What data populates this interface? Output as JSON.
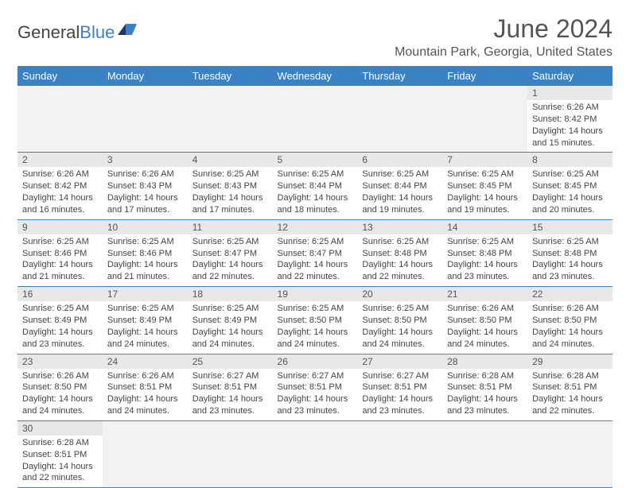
{
  "logo": {
    "text1": "General",
    "text2": "Blue"
  },
  "title": "June 2024",
  "location": "Mountain Park, Georgia, United States",
  "colors": {
    "header_bg": "#3b82c4",
    "header_fg": "#ffffff",
    "daynum_bg": "#e8e8e8",
    "border": "#3b82c4",
    "text": "#444444"
  },
  "typography": {
    "title_size_pt": 24,
    "location_size_pt": 12,
    "dayheader_size_pt": 10,
    "daynum_size_pt": 9,
    "body_size_pt": 8
  },
  "dayHeaders": [
    "Sunday",
    "Monday",
    "Tuesday",
    "Wednesday",
    "Thursday",
    "Friday",
    "Saturday"
  ],
  "startOffset": 6,
  "days": [
    {
      "n": 1,
      "sunrise": "6:26 AM",
      "sunset": "8:42 PM",
      "daylight": "14 hours and 15 minutes."
    },
    {
      "n": 2,
      "sunrise": "6:26 AM",
      "sunset": "8:42 PM",
      "daylight": "14 hours and 16 minutes."
    },
    {
      "n": 3,
      "sunrise": "6:26 AM",
      "sunset": "8:43 PM",
      "daylight": "14 hours and 17 minutes."
    },
    {
      "n": 4,
      "sunrise": "6:25 AM",
      "sunset": "8:43 PM",
      "daylight": "14 hours and 17 minutes."
    },
    {
      "n": 5,
      "sunrise": "6:25 AM",
      "sunset": "8:44 PM",
      "daylight": "14 hours and 18 minutes."
    },
    {
      "n": 6,
      "sunrise": "6:25 AM",
      "sunset": "8:44 PM",
      "daylight": "14 hours and 19 minutes."
    },
    {
      "n": 7,
      "sunrise": "6:25 AM",
      "sunset": "8:45 PM",
      "daylight": "14 hours and 19 minutes."
    },
    {
      "n": 8,
      "sunrise": "6:25 AM",
      "sunset": "8:45 PM",
      "daylight": "14 hours and 20 minutes."
    },
    {
      "n": 9,
      "sunrise": "6:25 AM",
      "sunset": "8:46 PM",
      "daylight": "14 hours and 21 minutes."
    },
    {
      "n": 10,
      "sunrise": "6:25 AM",
      "sunset": "8:46 PM",
      "daylight": "14 hours and 21 minutes."
    },
    {
      "n": 11,
      "sunrise": "6:25 AM",
      "sunset": "8:47 PM",
      "daylight": "14 hours and 22 minutes."
    },
    {
      "n": 12,
      "sunrise": "6:25 AM",
      "sunset": "8:47 PM",
      "daylight": "14 hours and 22 minutes."
    },
    {
      "n": 13,
      "sunrise": "6:25 AM",
      "sunset": "8:48 PM",
      "daylight": "14 hours and 22 minutes."
    },
    {
      "n": 14,
      "sunrise": "6:25 AM",
      "sunset": "8:48 PM",
      "daylight": "14 hours and 23 minutes."
    },
    {
      "n": 15,
      "sunrise": "6:25 AM",
      "sunset": "8:48 PM",
      "daylight": "14 hours and 23 minutes."
    },
    {
      "n": 16,
      "sunrise": "6:25 AM",
      "sunset": "8:49 PM",
      "daylight": "14 hours and 23 minutes."
    },
    {
      "n": 17,
      "sunrise": "6:25 AM",
      "sunset": "8:49 PM",
      "daylight": "14 hours and 24 minutes."
    },
    {
      "n": 18,
      "sunrise": "6:25 AM",
      "sunset": "8:49 PM",
      "daylight": "14 hours and 24 minutes."
    },
    {
      "n": 19,
      "sunrise": "6:25 AM",
      "sunset": "8:50 PM",
      "daylight": "14 hours and 24 minutes."
    },
    {
      "n": 20,
      "sunrise": "6:25 AM",
      "sunset": "8:50 PM",
      "daylight": "14 hours and 24 minutes."
    },
    {
      "n": 21,
      "sunrise": "6:26 AM",
      "sunset": "8:50 PM",
      "daylight": "14 hours and 24 minutes."
    },
    {
      "n": 22,
      "sunrise": "6:26 AM",
      "sunset": "8:50 PM",
      "daylight": "14 hours and 24 minutes."
    },
    {
      "n": 23,
      "sunrise": "6:26 AM",
      "sunset": "8:50 PM",
      "daylight": "14 hours and 24 minutes."
    },
    {
      "n": 24,
      "sunrise": "6:26 AM",
      "sunset": "8:51 PM",
      "daylight": "14 hours and 24 minutes."
    },
    {
      "n": 25,
      "sunrise": "6:27 AM",
      "sunset": "8:51 PM",
      "daylight": "14 hours and 23 minutes."
    },
    {
      "n": 26,
      "sunrise": "6:27 AM",
      "sunset": "8:51 PM",
      "daylight": "14 hours and 23 minutes."
    },
    {
      "n": 27,
      "sunrise": "6:27 AM",
      "sunset": "8:51 PM",
      "daylight": "14 hours and 23 minutes."
    },
    {
      "n": 28,
      "sunrise": "6:28 AM",
      "sunset": "8:51 PM",
      "daylight": "14 hours and 23 minutes."
    },
    {
      "n": 29,
      "sunrise": "6:28 AM",
      "sunset": "8:51 PM",
      "daylight": "14 hours and 22 minutes."
    },
    {
      "n": 30,
      "sunrise": "6:28 AM",
      "sunset": "8:51 PM",
      "daylight": "14 hours and 22 minutes."
    }
  ],
  "labels": {
    "sunrise": "Sunrise:",
    "sunset": "Sunset:",
    "daylight": "Daylight:"
  }
}
